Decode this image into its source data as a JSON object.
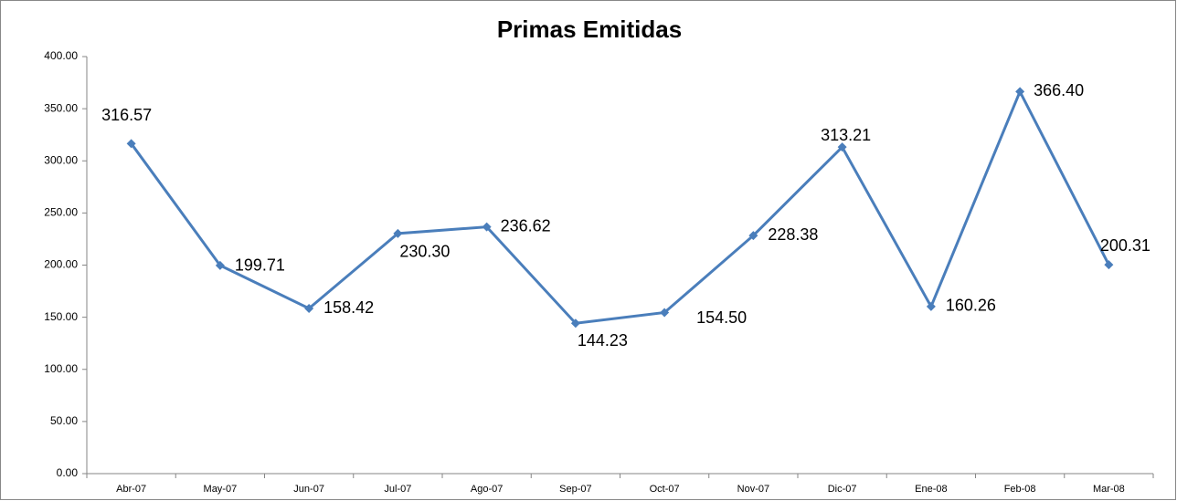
{
  "chart_data": {
    "type": "line",
    "title": "Primas Emitidas",
    "categories": [
      "Abr-07",
      "May-07",
      "Jun-07",
      "Jul-07",
      "Ago-07",
      "Sep-07",
      "Oct-07",
      "Nov-07",
      "Dic-07",
      "Ene-08",
      "Feb-08",
      "Mar-08"
    ],
    "series": [
      {
        "name": "Primas Emitidas",
        "color": "#4a7ebb",
        "values": [
          316.57,
          199.71,
          158.42,
          230.3,
          236.62,
          144.23,
          154.5,
          228.38,
          313.21,
          160.26,
          366.4,
          200.31
        ],
        "value_labels": [
          "316.57",
          "199.71",
          "158.42",
          "230.30",
          "236.62",
          "144.23",
          "154.50",
          "228.38",
          "313.21",
          "160.26",
          "366.40",
          "200.31"
        ]
      }
    ],
    "ylim": [
      0,
      400
    ],
    "yticks": [
      {
        "value": 0,
        "label": "0.00"
      },
      {
        "value": 50,
        "label": "50.00"
      },
      {
        "value": 100,
        "label": "100.00"
      },
      {
        "value": 150,
        "label": "150.00"
      },
      {
        "value": 200,
        "label": "200.00"
      },
      {
        "value": 250,
        "label": "250.00"
      },
      {
        "value": 300,
        "label": "300.00"
      },
      {
        "value": 350,
        "label": "350.00"
      },
      {
        "value": 400,
        "label": "400.00"
      }
    ]
  }
}
